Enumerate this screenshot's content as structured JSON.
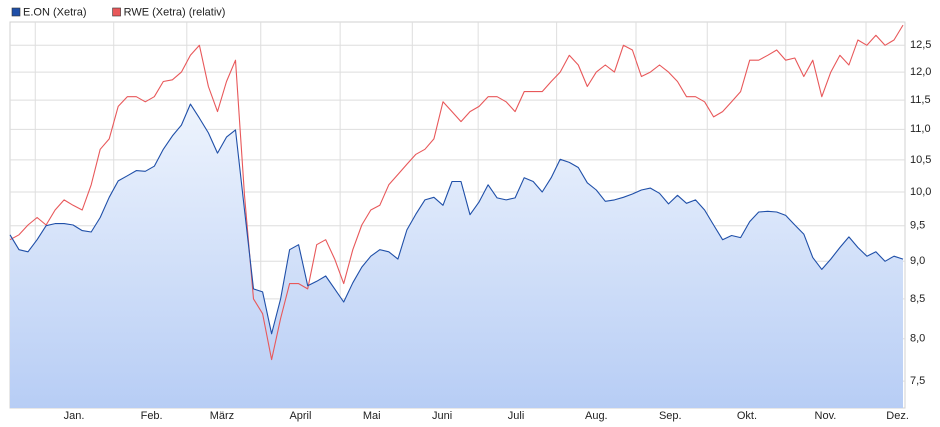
{
  "chart_data": {
    "type": "line",
    "log_y": true,
    "grid": true,
    "legend": "top-left",
    "area_series": 0,
    "xlim": [
      0,
      99
    ],
    "xticks": [
      {
        "value": 7.1,
        "label": "Jan."
      },
      {
        "value": 15.7,
        "label": "Feb."
      },
      {
        "value": 23.5,
        "label": "März"
      },
      {
        "value": 32.2,
        "label": "April"
      },
      {
        "value": 40.1,
        "label": "Mai"
      },
      {
        "value": 47.9,
        "label": "Juni"
      },
      {
        "value": 56.1,
        "label": "Juli"
      },
      {
        "value": 65.0,
        "label": "Aug."
      },
      {
        "value": 73.2,
        "label": "Sep."
      },
      {
        "value": 81.7,
        "label": "Okt."
      },
      {
        "value": 90.4,
        "label": "Nov."
      },
      {
        "value": 98.4,
        "label": "Dez."
      }
    ],
    "xgrid": [
      2.8,
      11.5,
      19.6,
      27.8,
      36.6,
      44.6,
      51.9,
      60.6,
      69.4,
      77.3,
      86.0,
      94.9
    ],
    "ylim": [
      7.2,
      12.95
    ],
    "yticks": [
      {
        "value": 7.5,
        "label": "7,5"
      },
      {
        "value": 8,
        "label": "8,0"
      },
      {
        "value": 8.5,
        "label": "8,5"
      },
      {
        "value": 9,
        "label": "9,0"
      },
      {
        "value": 9.5,
        "label": "9,5"
      },
      {
        "value": 10,
        "label": "10,0"
      },
      {
        "value": 10.5,
        "label": "10,5"
      },
      {
        "value": 11,
        "label": "11,0"
      },
      {
        "value": 11.5,
        "label": "11,5"
      },
      {
        "value": 12,
        "label": "12,0"
      },
      {
        "value": 12.5,
        "label": "12,5"
      }
    ],
    "series": [
      {
        "name": "E.ON (Xetra)",
        "color": "#1f4fa8",
        "values": [
          9.37,
          9.16,
          9.13,
          9.3,
          9.5,
          9.53,
          9.53,
          9.51,
          9.43,
          9.41,
          9.62,
          9.92,
          10.17,
          10.25,
          10.33,
          10.32,
          10.4,
          10.67,
          10.89,
          11.07,
          11.43,
          11.19,
          10.94,
          10.61,
          10.87,
          10.99,
          9.73,
          8.63,
          8.59,
          8.06,
          8.5,
          9.16,
          9.23,
          8.67,
          8.73,
          8.8,
          8.63,
          8.46,
          8.71,
          8.92,
          9.07,
          9.16,
          9.13,
          9.03,
          9.44,
          9.67,
          9.88,
          9.92,
          9.8,
          10.16,
          10.16,
          9.66,
          9.85,
          10.11,
          9.91,
          9.88,
          9.91,
          10.22,
          10.16,
          10.0,
          10.22,
          10.51,
          10.46,
          10.38,
          10.14,
          10.03,
          9.86,
          9.88,
          9.92,
          9.97,
          10.03,
          10.06,
          9.98,
          9.82,
          9.95,
          9.83,
          9.88,
          9.73,
          9.51,
          9.3,
          9.36,
          9.33,
          9.56,
          9.7,
          9.71,
          9.7,
          9.65,
          9.51,
          9.38,
          9.05,
          8.89,
          9.03,
          9.19,
          9.34,
          9.19,
          9.07,
          9.13,
          9.0,
          9.07,
          9.03
        ]
      },
      {
        "name": "RWE (Xetra) (relativ)",
        "color": "#e8585a",
        "values": [
          9.3,
          9.37,
          9.51,
          9.62,
          9.51,
          9.73,
          9.88,
          9.8,
          9.73,
          10.11,
          10.67,
          10.84,
          11.39,
          11.56,
          11.56,
          11.47,
          11.56,
          11.83,
          11.86,
          12.0,
          12.31,
          12.5,
          11.74,
          11.3,
          11.83,
          12.22,
          9.95,
          8.5,
          8.31,
          7.75,
          8.25,
          8.7,
          8.7,
          8.63,
          9.23,
          9.3,
          9.03,
          8.7,
          9.16,
          9.51,
          9.73,
          9.8,
          10.11,
          10.27,
          10.43,
          10.59,
          10.67,
          10.84,
          11.47,
          11.3,
          11.13,
          11.3,
          11.39,
          11.56,
          11.56,
          11.47,
          11.3,
          11.65,
          11.65,
          11.65,
          11.83,
          12.0,
          12.31,
          12.13,
          11.74,
          12.0,
          12.13,
          12.0,
          12.5,
          12.41,
          11.92,
          12.0,
          12.13,
          12.0,
          11.83,
          11.56,
          11.56,
          11.47,
          11.21,
          11.3,
          11.47,
          11.65,
          12.22,
          12.22,
          12.31,
          12.41,
          12.22,
          12.26,
          11.92,
          12.22,
          11.56,
          12.0,
          12.31,
          12.13,
          12.6,
          12.5,
          12.69,
          12.5,
          12.6,
          12.89
        ]
      }
    ]
  }
}
